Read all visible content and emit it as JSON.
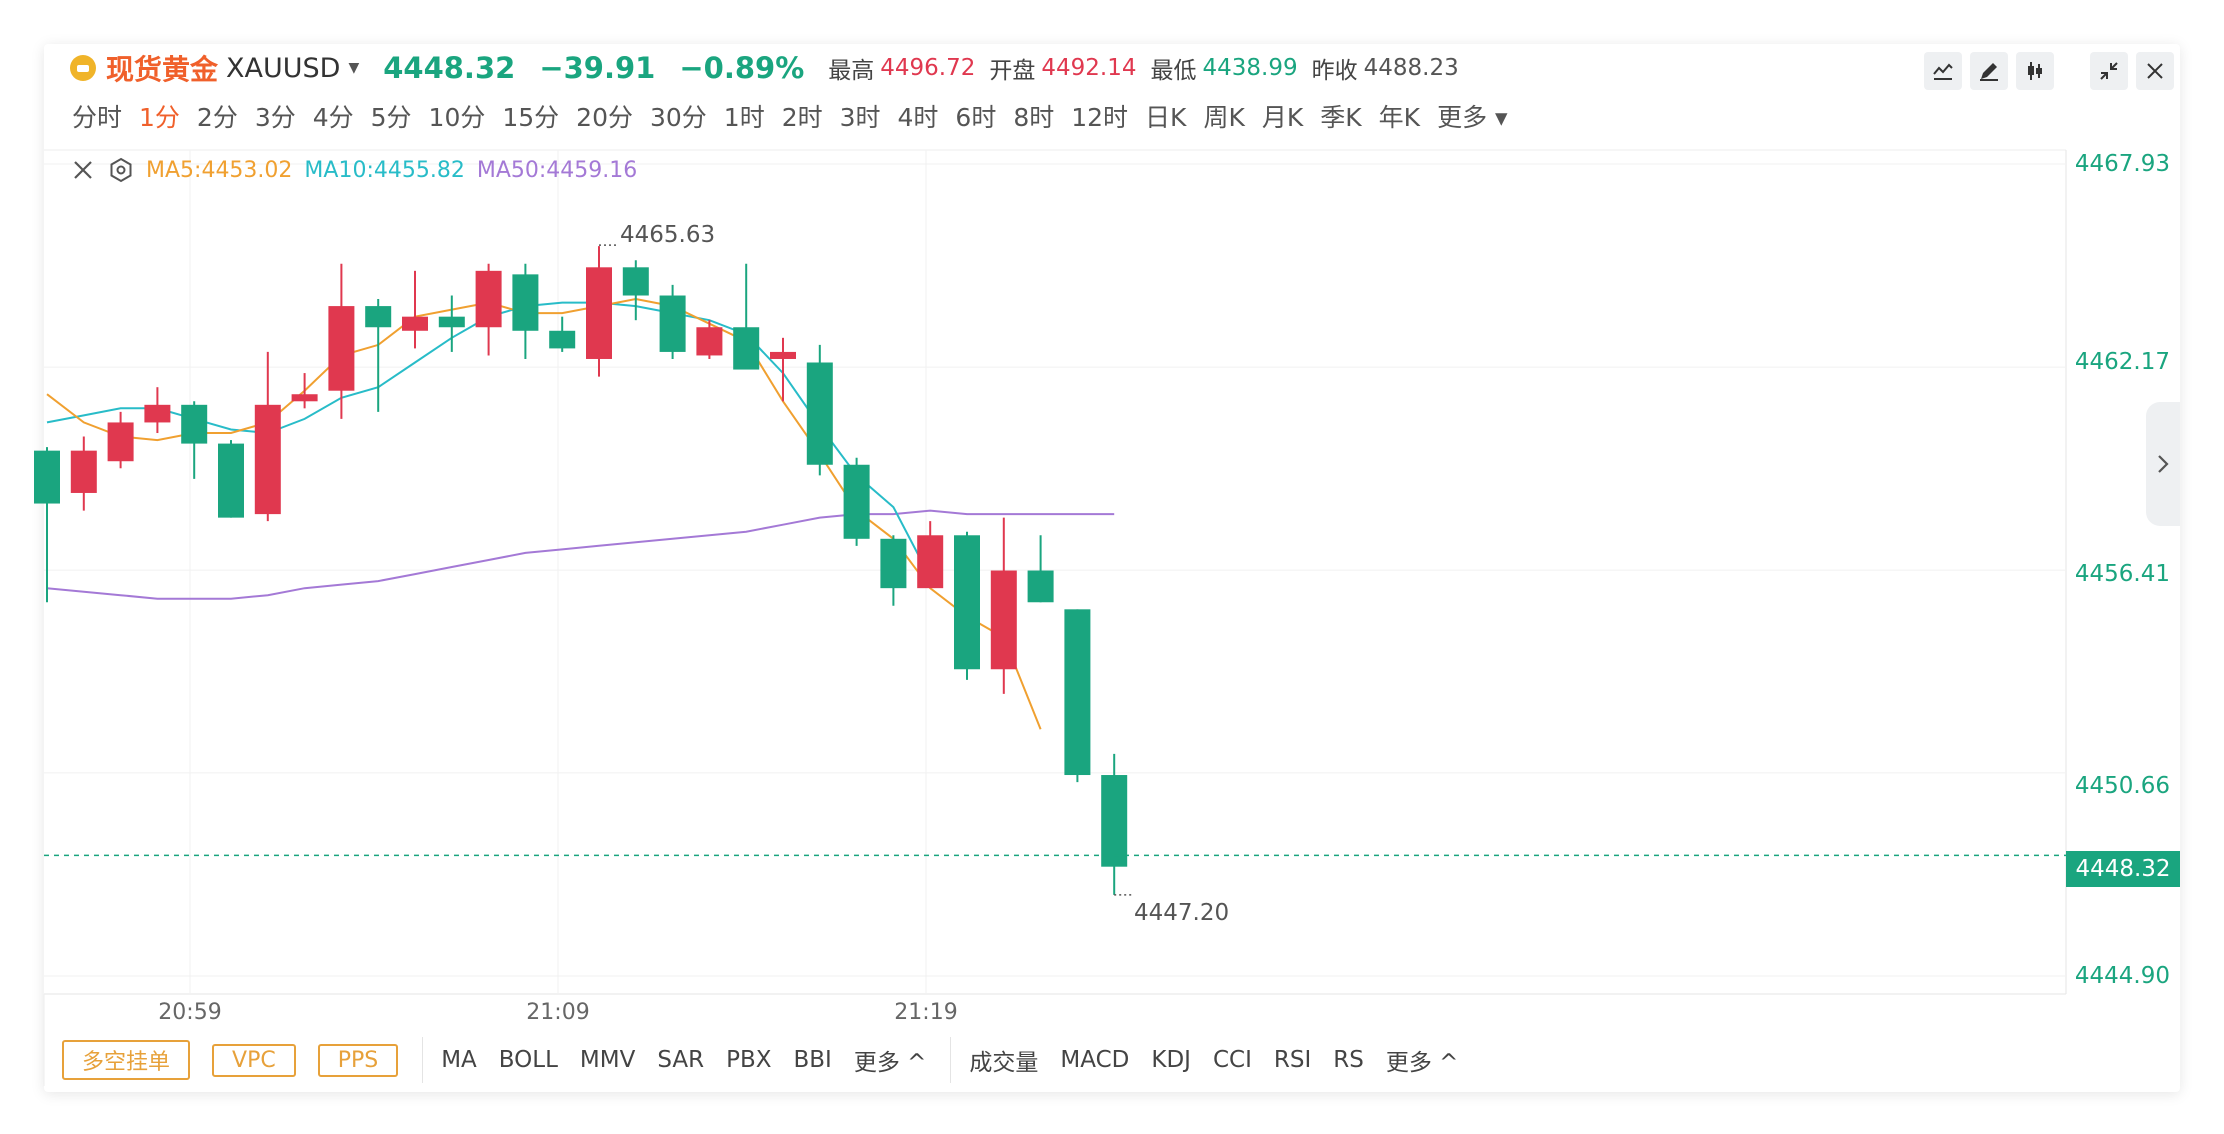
{
  "header": {
    "name": "现货黄金",
    "symbol": "XAUUSD",
    "price": "4448.32",
    "change": "−39.91",
    "change_pct": "−0.89%",
    "high_label": "最高",
    "high": "4496.72",
    "open_label": "开盘",
    "open": "4492.14",
    "low_label": "最低",
    "low": "4438.99",
    "prev_close_label": "昨收",
    "prev_close": "4488.23"
  },
  "intervals": [
    "分时",
    "1分",
    "2分",
    "3分",
    "4分",
    "5分",
    "10分",
    "15分",
    "20分",
    "30分",
    "1时",
    "2时",
    "3时",
    "4时",
    "6时",
    "8时",
    "12时",
    "日K",
    "周K",
    "月K",
    "季K",
    "年K",
    "更多"
  ],
  "active_interval": "1分",
  "ma_legend": {
    "ma5": "MA5:4453.02",
    "ma10": "MA10:4455.82",
    "ma50": "MA50:4459.16"
  },
  "annotations": {
    "high": "4465.63",
    "low": "4447.20",
    "current": "4448.32"
  },
  "bottom": {
    "pills": [
      "多空挂单",
      "VPC",
      "PPS"
    ],
    "overlays": [
      "MA",
      "BOLL",
      "MMV",
      "SAR",
      "PBX",
      "BBI",
      "更多 ^"
    ],
    "indicators": [
      "成交量",
      "MACD",
      "KDJ",
      "CCI",
      "RSI",
      "RS",
      "更多 ^"
    ]
  },
  "colors": {
    "up": "#e0384f",
    "down": "#1aa57f",
    "ma5": "#f0a030",
    "ma10": "#28bcc8",
    "ma50": "#a479d6",
    "accent": "#f0602b"
  },
  "chart_data": {
    "type": "candlestick",
    "y_ticks": [
      "4467.93",
      "4462.17",
      "4456.41",
      "4450.66",
      "4444.90"
    ],
    "x_ticks": [
      "20:59",
      "21:09",
      "21:19"
    ],
    "ylim": [
      4444.9,
      4467.93
    ],
    "candles": [
      {
        "o": 4459.8,
        "c": 4458.3,
        "h": 4459.9,
        "l": 4455.5
      },
      {
        "o": 4458.6,
        "c": 4459.8,
        "h": 4460.2,
        "l": 4458.1
      },
      {
        "o": 4459.5,
        "c": 4460.6,
        "h": 4460.9,
        "l": 4459.3
      },
      {
        "o": 4460.6,
        "c": 4461.1,
        "h": 4461.6,
        "l": 4460.3
      },
      {
        "o": 4461.1,
        "c": 4460.0,
        "h": 4461.2,
        "l": 4459.0
      },
      {
        "o": 4460.0,
        "c": 4457.9,
        "h": 4460.1,
        "l": 4457.9
      },
      {
        "o": 4458.0,
        "c": 4461.1,
        "h": 4462.6,
        "l": 4457.8
      },
      {
        "o": 4461.2,
        "c": 4461.4,
        "h": 4462.0,
        "l": 4461.0
      },
      {
        "o": 4461.5,
        "c": 4463.9,
        "h": 4465.1,
        "l": 4460.7
      },
      {
        "o": 4463.9,
        "c": 4463.3,
        "h": 4464.1,
        "l": 4460.9
      },
      {
        "o": 4463.2,
        "c": 4463.6,
        "h": 4464.9,
        "l": 4462.7
      },
      {
        "o": 4463.6,
        "c": 4463.3,
        "h": 4464.2,
        "l": 4462.6
      },
      {
        "o": 4463.3,
        "c": 4464.9,
        "h": 4465.1,
        "l": 4462.5
      },
      {
        "o": 4464.8,
        "c": 4463.2,
        "h": 4465.1,
        "l": 4462.4
      },
      {
        "o": 4463.2,
        "c": 4462.7,
        "h": 4463.6,
        "l": 4462.6
      },
      {
        "o": 4462.4,
        "c": 4465.0,
        "h": 4465.6,
        "l": 4461.9
      },
      {
        "o": 4465.0,
        "c": 4464.2,
        "h": 4465.2,
        "l": 4463.5
      },
      {
        "o": 4464.2,
        "c": 4462.6,
        "h": 4464.5,
        "l": 4462.4
      },
      {
        "o": 4462.5,
        "c": 4463.3,
        "h": 4463.5,
        "l": 4462.4
      },
      {
        "o": 4463.3,
        "c": 4462.1,
        "h": 4465.1,
        "l": 4462.1
      },
      {
        "o": 4462.4,
        "c": 4462.6,
        "h": 4463.0,
        "l": 4461.2
      },
      {
        "o": 4462.3,
        "c": 4459.4,
        "h": 4462.8,
        "l": 4459.1
      },
      {
        "o": 4459.4,
        "c": 4457.3,
        "h": 4459.6,
        "l": 4457.1
      },
      {
        "o": 4457.3,
        "c": 4455.9,
        "h": 4457.4,
        "l": 4455.4
      },
      {
        "o": 4455.9,
        "c": 4457.4,
        "h": 4457.8,
        "l": 4455.9
      },
      {
        "o": 4457.4,
        "c": 4453.6,
        "h": 4457.5,
        "l": 4453.3
      },
      {
        "o": 4453.6,
        "c": 4456.4,
        "h": 4457.9,
        "l": 4452.9
      },
      {
        "o": 4456.4,
        "c": 4455.5,
        "h": 4457.4,
        "l": 4455.5
      },
      {
        "o": 4455.3,
        "c": 4450.6,
        "h": 4455.3,
        "l": 4450.4
      },
      {
        "o": 4450.6,
        "c": 4448.0,
        "h": 4451.2,
        "l": 4447.2
      }
    ],
    "ma5": [
      4461.4,
      4460.6,
      4460.2,
      4460.1,
      4460.3,
      4460.3,
      4460.6,
      4461.5,
      4462.5,
      4462.8,
      4463.6,
      4463.8,
      4464.0,
      4463.7,
      4463.7,
      4463.9,
      4464.1,
      4463.9,
      4463.4,
      4462.9,
      4461.2,
      4459.7,
      4458.1,
      4457.3,
      4455.9,
      4455.1,
      4454.5,
      4451.9
    ],
    "ma10": [
      4460.6,
      4460.8,
      4461.0,
      4461.0,
      4460.7,
      4460.4,
      4460.3,
      4460.7,
      4461.3,
      4461.6,
      4462.3,
      4463.0,
      4463.6,
      4463.9,
      4464.0,
      4464.0,
      4463.9,
      4463.7,
      4463.5,
      4463.1,
      4462.0,
      4460.5,
      4459.1,
      4458.2,
      4456.2
    ],
    "ma50": [
      4455.9,
      4455.8,
      4455.7,
      4455.6,
      4455.6,
      4455.6,
      4455.7,
      4455.9,
      4456.0,
      4456.1,
      4456.3,
      4456.5,
      4456.7,
      4456.9,
      4457.0,
      4457.1,
      4457.2,
      4457.3,
      4457.4,
      4457.5,
      4457.7,
      4457.9,
      4458.0,
      4458.0,
      4458.1,
      4458.0,
      4458.0,
      4458.0,
      4458.0,
      4458.0
    ]
  }
}
